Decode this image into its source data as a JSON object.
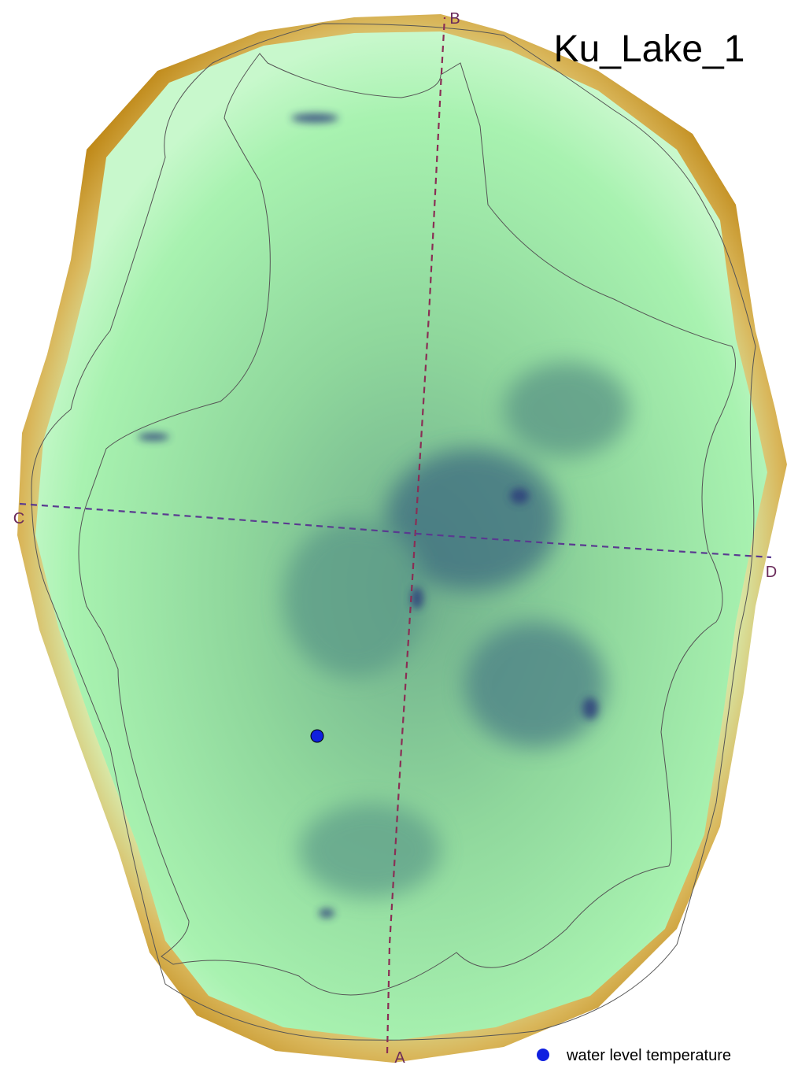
{
  "title": "Ku_Lake_1",
  "transects": [
    {
      "start": "A",
      "end": "B"
    },
    {
      "start": "C",
      "end": "D"
    }
  ],
  "legend": {
    "label": "water level temperature"
  }
}
